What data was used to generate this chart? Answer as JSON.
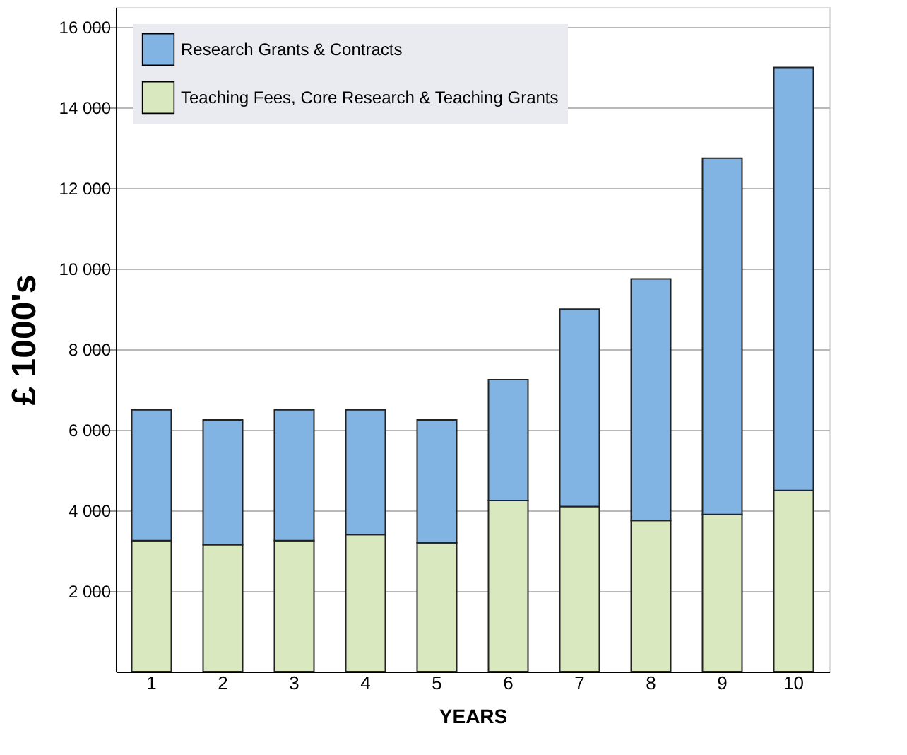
{
  "chart_data": {
    "type": "bar",
    "stacked": true,
    "xlabel": "YEARS",
    "ylabel": "£ 1000's",
    "categories": [
      "1",
      "2",
      "3",
      "4",
      "5",
      "6",
      "7",
      "8",
      "9",
      "10"
    ],
    "series": [
      {
        "name": "Teaching Fees, Core Research & Teaching Grants",
        "color": "#d9e8bf",
        "values": [
          3250,
          3150,
          3250,
          3400,
          3200,
          4250,
          4100,
          3750,
          3900,
          4500
        ]
      },
      {
        "name": "Research Grants & Contracts",
        "color": "#82b4e3",
        "values": [
          3250,
          3100,
          3250,
          3100,
          3050,
          3000,
          4900,
          6000,
          8850,
          10500
        ]
      }
    ],
    "ylim": [
      0,
      16500
    ],
    "yticks": [
      {
        "value": 2000,
        "label": "2 000"
      },
      {
        "value": 4000,
        "label": "4 000"
      },
      {
        "value": 6000,
        "label": "6 000"
      },
      {
        "value": 8000,
        "label": "8 000"
      },
      {
        "value": 10000,
        "label": "10 000"
      },
      {
        "value": 12000,
        "label": "12 000"
      },
      {
        "value": 14000,
        "label": "14 000"
      },
      {
        "value": 16000,
        "label": "16 000"
      }
    ],
    "grid": "y",
    "legend": "top left"
  }
}
